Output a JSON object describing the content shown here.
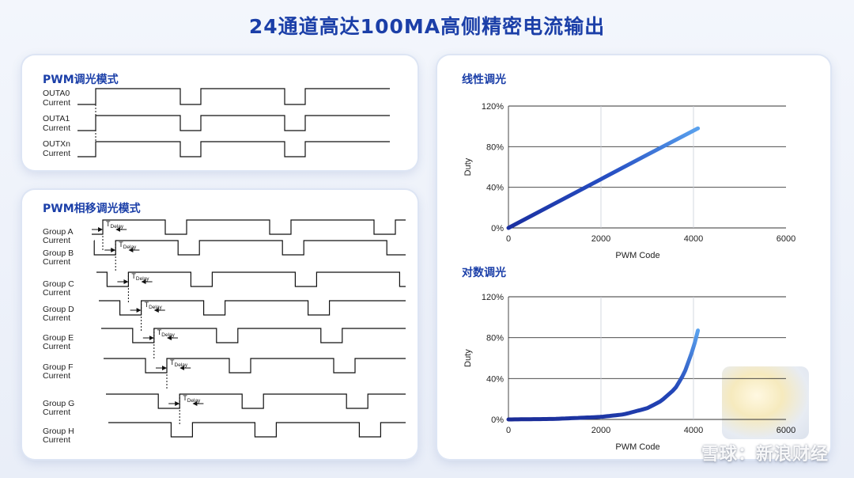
{
  "title": "24通道高达100MA高侧精密电流输出",
  "pwm_panel": {
    "title": "PWM调光模式",
    "signals": [
      {
        "line1": "OUTA0",
        "line2": "Current"
      },
      {
        "line1": "OUTA1",
        "line2": "Current"
      },
      {
        "line1": "OUTXn",
        "line2": "Current"
      }
    ]
  },
  "phase_panel": {
    "title": "PWM相移调光模式",
    "groups": [
      {
        "line1": "Group A",
        "line2": "Current"
      },
      {
        "line1": "Group B",
        "line2": "Current"
      },
      {
        "line1": "Group C",
        "line2": "Current"
      },
      {
        "line1": "Group D",
        "line2": "Current"
      },
      {
        "line1": "Group E",
        "line2": "Current"
      },
      {
        "line1": "Group F",
        "line2": "Current"
      },
      {
        "line1": "Group G",
        "line2": "Current"
      },
      {
        "line1": "Group H",
        "line2": "Current"
      }
    ],
    "delay_label": "T",
    "delay_sub": "Delay"
  },
  "charts": {
    "linear_title": "线性调光",
    "log_title": "对数调光",
    "chart_data": [
      {
        "type": "line",
        "title": "线性调光",
        "xlabel": "PWM Code",
        "ylabel": "Duty",
        "xlim": [
          0,
          6000
        ],
        "ylim": [
          0,
          120
        ],
        "x_ticks": [
          "0",
          "2000",
          "4000",
          "6000"
        ],
        "y_ticks": [
          "0%",
          "40%",
          "80%",
          "120%"
        ],
        "series": [
          {
            "x": [
              0,
              1000,
              2000,
              3000,
              4096
            ],
            "y": [
              0,
              24,
              48,
              72,
              98
            ]
          }
        ],
        "grid": "on"
      },
      {
        "type": "line",
        "title": "对数调光",
        "xlabel": "PWM Code",
        "ylabel": "Duty",
        "xlim": [
          0,
          6000
        ],
        "ylim": [
          0,
          120
        ],
        "x_ticks": [
          "0",
          "2000",
          "4000",
          "6000"
        ],
        "y_ticks": [
          "0%",
          "40%",
          "80%",
          "120%"
        ],
        "series": [
          {
            "x": [
              0,
              1000,
              2000,
              2500,
              3000,
              3300,
              3600,
              3800,
              4000,
              4096
            ],
            "y": [
              0,
              0.5,
              2.5,
              5,
              11,
              18,
              30,
              45,
              70,
              87
            ]
          }
        ],
        "grid": "on"
      }
    ]
  },
  "watermark": "雪球：新浪财经"
}
